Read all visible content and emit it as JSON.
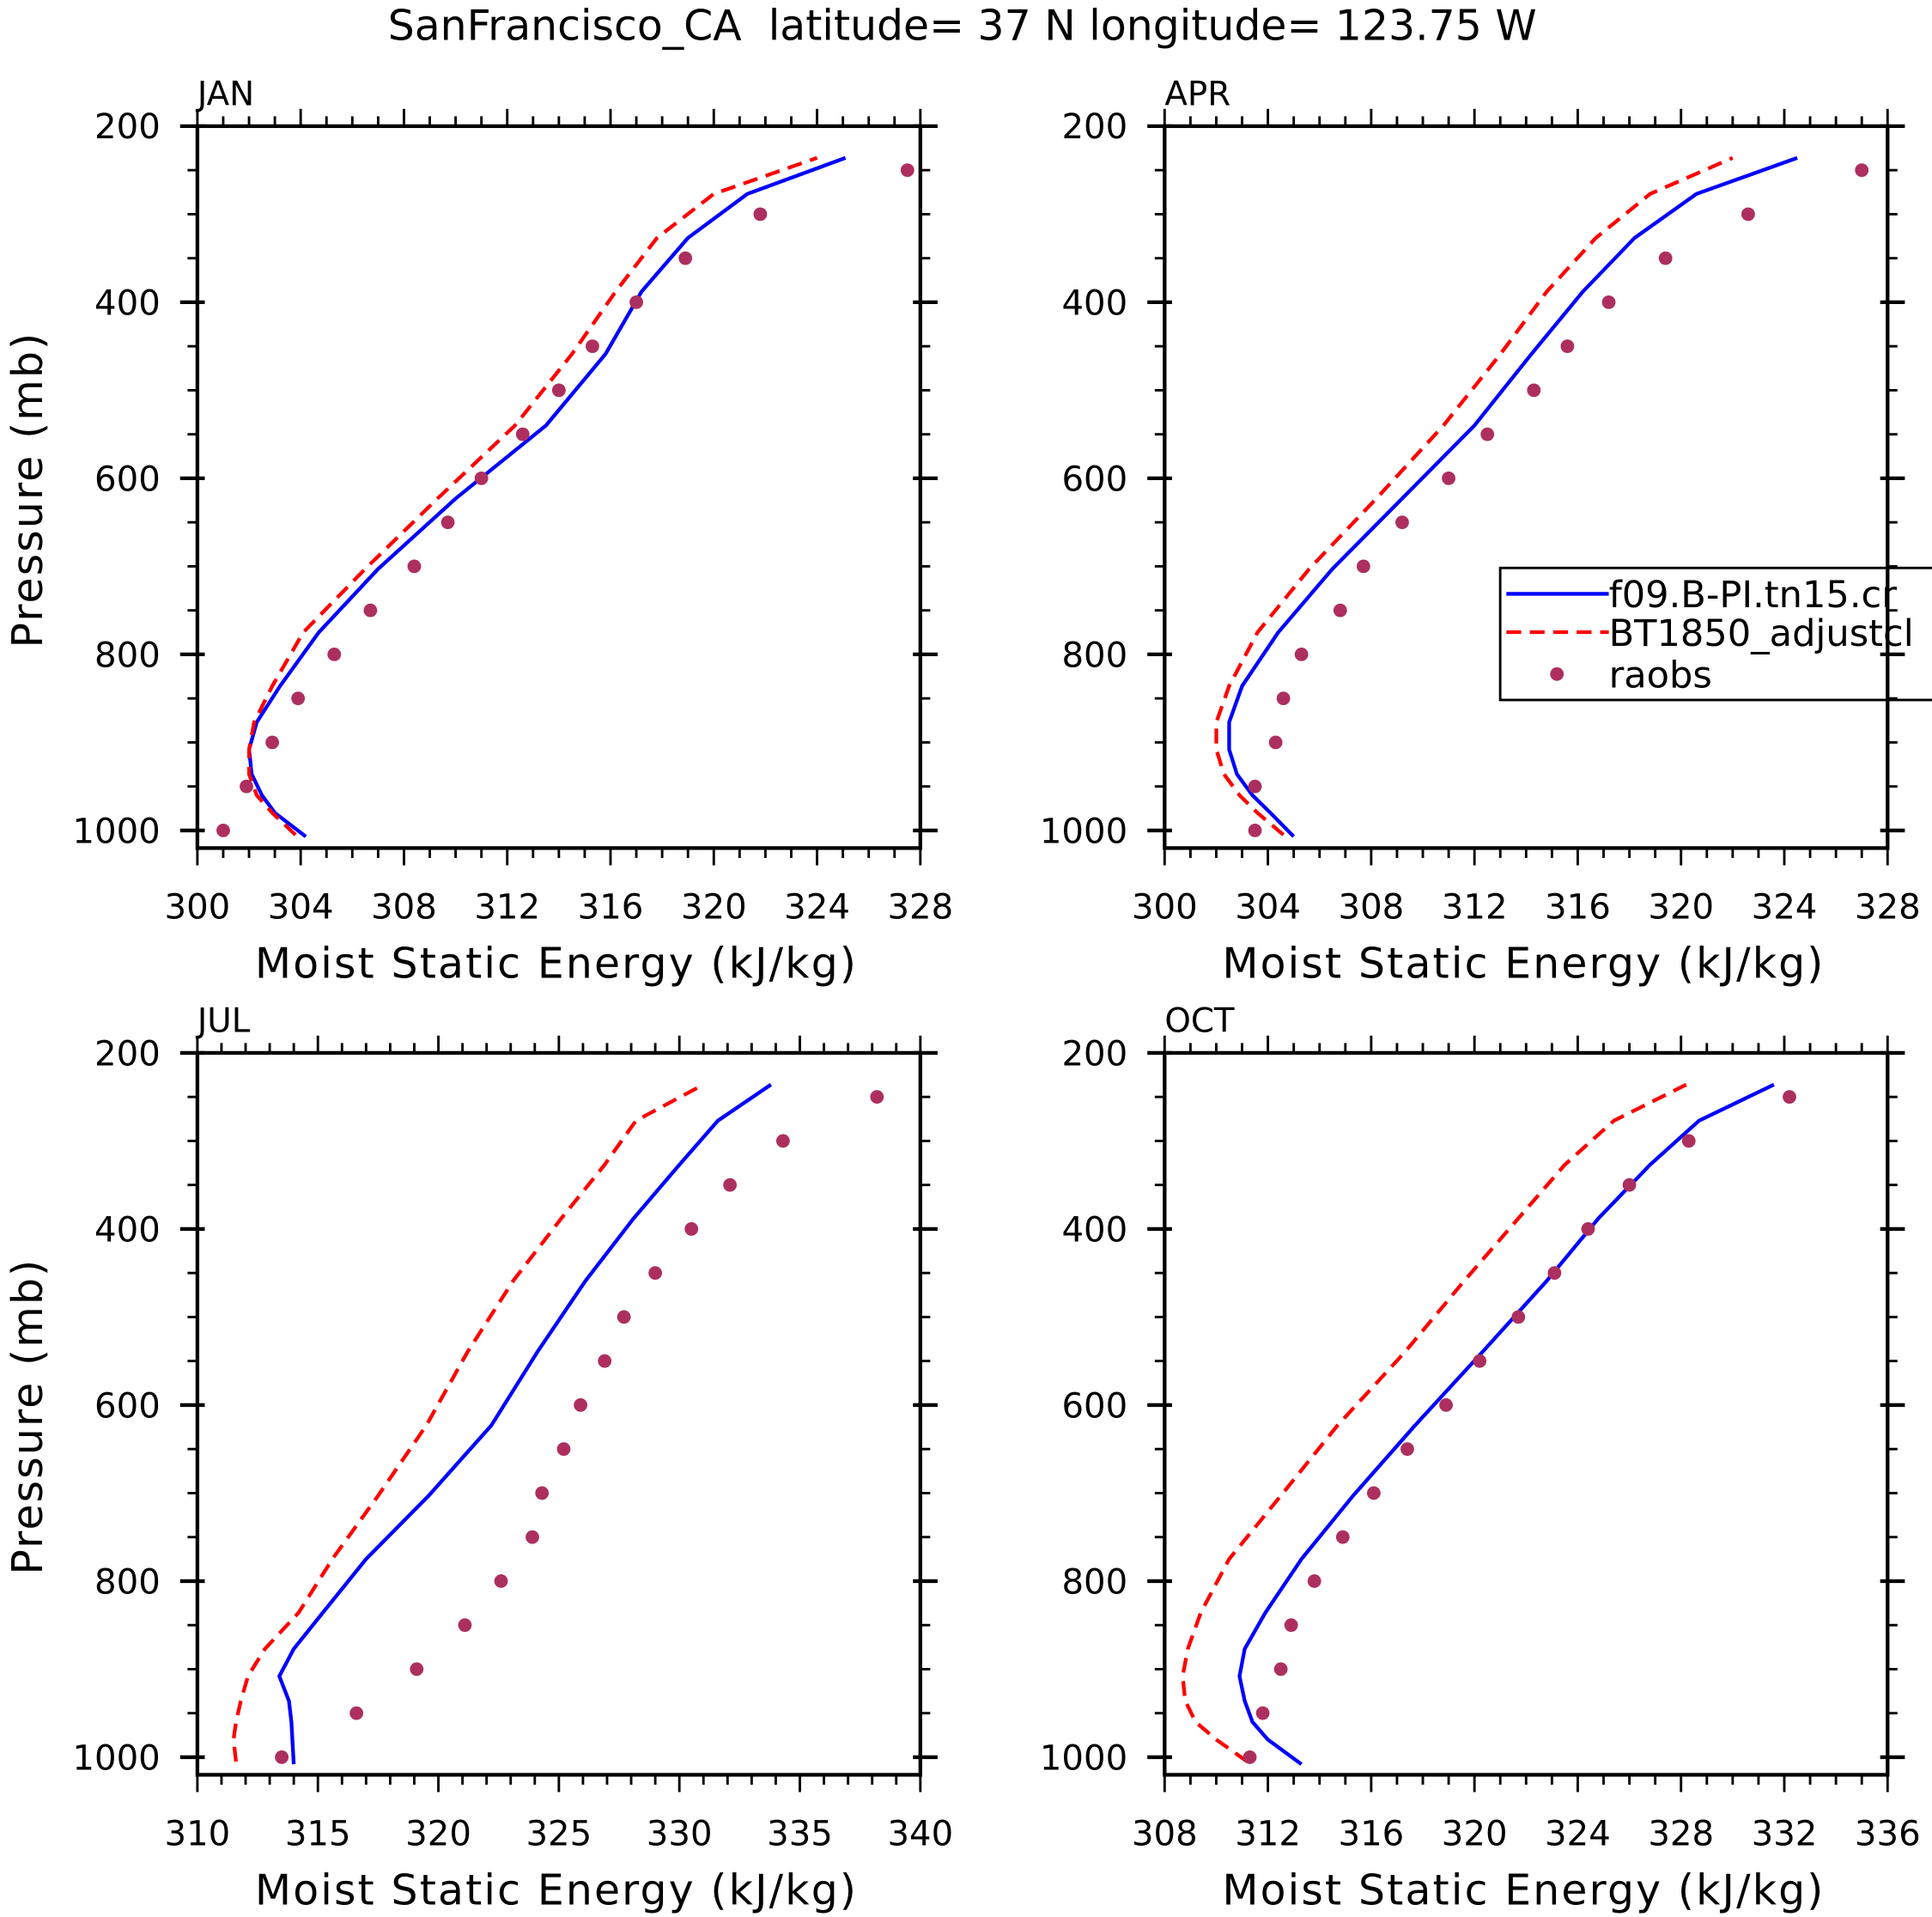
{
  "title": "SanFrancisco_CA  latitude= 37 N longitude= 123.75 W",
  "colors": {
    "model1": "#0000ff",
    "model2": "#ff0000",
    "raobs": "#ad2f5f",
    "axis": "#000000"
  },
  "legend": {
    "placement": "inside APR panel, right",
    "entries": [
      {
        "label": "f09.B-PI.tn15.cr",
        "style": "solid",
        "color": "#0000ff"
      },
      {
        "label": "BT1850_adjustcl",
        "style": "dashed",
        "color": "#ff0000"
      },
      {
        "label": "raobs",
        "style": "dot",
        "color": "#ad2f5f"
      }
    ]
  },
  "chart_data": [
    {
      "type": "line",
      "title": "JAN",
      "xlabel": "Moist Static Energy (kJ/kg)",
      "ylabel": "Pressure (mb)",
      "xlim": [
        300,
        328
      ],
      "xticks": [
        300,
        304,
        308,
        312,
        316,
        320,
        324,
        328
      ],
      "ylim": [
        200,
        1020
      ],
      "yticks": [
        200,
        400,
        600,
        800,
        1000
      ],
      "y_inverted": true,
      "series": [
        {
          "name": "f09.B-PI.tn15.cr",
          "style": "solid",
          "p": [
            1007,
            980,
            960,
            936,
            908,
            877,
            836,
            775,
            703,
            623,
            540,
            459,
            388,
            327,
            277,
            236
          ],
          "x": [
            304.2,
            303.0,
            302.5,
            302.1,
            302.0,
            302.3,
            303.2,
            304.7,
            307.0,
            310.0,
            313.5,
            315.8,
            317.2,
            319.0,
            321.3,
            325.1
          ]
        },
        {
          "name": "BT1850_adjustcl",
          "style": "dashed",
          "p": [
            1005,
            980,
            960,
            936,
            908,
            877,
            836,
            775,
            703,
            623,
            540,
            459,
            388,
            327,
            277,
            236
          ],
          "x": [
            303.8,
            302.9,
            302.3,
            302.0,
            302.0,
            302.2,
            302.9,
            304.1,
            306.5,
            309.3,
            312.3,
            314.5,
            316.2,
            317.8,
            320.0,
            324.0
          ]
        },
        {
          "name": "raobs",
          "style": "dot",
          "p": [
            1000,
            950,
            900,
            850,
            800,
            750,
            700,
            650,
            600,
            550,
            500,
            450,
            400,
            350,
            300,
            250
          ],
          "x": [
            301.0,
            301.9,
            302.9,
            303.9,
            305.3,
            306.7,
            308.4,
            309.7,
            311.0,
            312.6,
            314.0,
            315.3,
            317.0,
            318.9,
            321.8,
            327.5
          ]
        }
      ]
    },
    {
      "type": "line",
      "title": "APR",
      "xlabel": "Moist Static Energy (kJ/kg)",
      "ylabel": "",
      "xlim": [
        300,
        328
      ],
      "xticks": [
        300,
        304,
        308,
        312,
        316,
        320,
        324,
        328
      ],
      "ylim": [
        200,
        1020
      ],
      "yticks": [
        200,
        400,
        600,
        800,
        1000
      ],
      "y_inverted": true,
      "series": [
        {
          "name": "f09.B-PI.tn15.cr",
          "style": "solid",
          "p": [
            1007,
            980,
            960,
            936,
            908,
            877,
            836,
            775,
            703,
            623,
            540,
            459,
            388,
            327,
            277,
            236
          ],
          "x": [
            305.0,
            304.1,
            303.4,
            302.8,
            302.5,
            302.5,
            303.0,
            304.4,
            306.5,
            309.2,
            312.0,
            314.2,
            316.2,
            318.2,
            320.6,
            324.5
          ]
        },
        {
          "name": "BT1850_adjustcl",
          "style": "dashed",
          "p": [
            1005,
            980,
            960,
            936,
            908,
            877,
            836,
            775,
            703,
            623,
            540,
            459,
            388,
            327,
            277,
            236
          ],
          "x": [
            304.6,
            303.6,
            302.9,
            302.3,
            302.0,
            302.0,
            302.5,
            303.6,
            305.6,
            308.2,
            310.8,
            313.0,
            314.8,
            316.7,
            318.8,
            322.0
          ]
        },
        {
          "name": "raobs",
          "style": "dot",
          "p": [
            1000,
            950,
            900,
            850,
            800,
            750,
            700,
            650,
            600,
            550,
            500,
            450,
            400,
            350,
            300,
            250
          ],
          "x": [
            303.5,
            303.5,
            304.3,
            304.6,
            305.3,
            306.8,
            307.7,
            309.2,
            311.0,
            312.5,
            314.3,
            315.6,
            317.2,
            319.4,
            322.6,
            327.0
          ]
        }
      ]
    },
    {
      "type": "line",
      "title": "JUL",
      "xlabel": "Moist Static Energy (kJ/kg)",
      "ylabel": "Pressure (mb)",
      "xlim": [
        310,
        340
      ],
      "xticks": [
        310,
        315,
        320,
        325,
        330,
        335,
        340
      ],
      "ylim": [
        200,
        1020
      ],
      "yticks": [
        200,
        400,
        600,
        800,
        1000
      ],
      "y_inverted": true,
      "series": [
        {
          "name": "f09.B-PI.tn15.cr",
          "style": "solid",
          "p": [
            1008,
            960,
            936,
            908,
            877,
            836,
            775,
            703,
            623,
            540,
            459,
            388,
            327,
            277,
            236
          ],
          "x": [
            314.0,
            313.9,
            313.8,
            313.4,
            314.0,
            315.2,
            317.0,
            319.6,
            322.2,
            324.1,
            326.1,
            328.1,
            330.0,
            331.6,
            333.8
          ]
        },
        {
          "name": "BT1850_adjustcl",
          "style": "dashed",
          "p": [
            1005,
            980,
            960,
            936,
            908,
            877,
            836,
            775,
            703,
            623,
            540,
            459,
            388,
            327,
            277,
            236
          ],
          "x": [
            311.6,
            311.5,
            311.6,
            311.8,
            312.1,
            312.8,
            314.2,
            315.6,
            317.5,
            319.5,
            321.2,
            323.1,
            325.1,
            326.9,
            328.2,
            331.0
          ]
        },
        {
          "name": "raobs",
          "style": "dot",
          "p": [
            1000,
            950,
            900,
            850,
            800,
            750,
            700,
            650,
            600,
            550,
            500,
            450,
            400,
            350,
            300,
            250
          ],
          "x": [
            313.5,
            316.6,
            319.1,
            321.1,
            322.6,
            323.9,
            324.3,
            325.2,
            325.9,
            326.9,
            327.7,
            329.0,
            330.5,
            332.1,
            334.3,
            338.2
          ]
        }
      ]
    },
    {
      "type": "line",
      "title": "OCT",
      "xlabel": "Moist Static Energy (kJ/kg)",
      "ylabel": "",
      "xlim": [
        308,
        336
      ],
      "xticks": [
        308,
        312,
        316,
        320,
        324,
        328,
        332,
        336
      ],
      "ylim": [
        200,
        1020
      ],
      "yticks": [
        200,
        400,
        600,
        800,
        1000
      ],
      "y_inverted": true,
      "series": [
        {
          "name": "f09.B-PI.tn15.cr",
          "style": "solid",
          "p": [
            1008,
            980,
            960,
            936,
            908,
            877,
            836,
            775,
            703,
            623,
            540,
            459,
            388,
            327,
            277,
            236
          ],
          "x": [
            313.3,
            312.0,
            311.4,
            311.1,
            310.9,
            311.1,
            311.9,
            313.3,
            315.3,
            317.7,
            320.3,
            322.8,
            324.8,
            326.8,
            328.7,
            331.6
          ]
        },
        {
          "name": "BT1850_adjustcl",
          "style": "dashed",
          "p": [
            1005,
            980,
            960,
            936,
            908,
            877,
            836,
            775,
            703,
            623,
            540,
            459,
            388,
            327,
            277,
            236
          ],
          "x": [
            311.2,
            310.0,
            309.2,
            308.8,
            308.7,
            308.9,
            309.4,
            310.5,
            312.5,
            314.7,
            317.3,
            319.6,
            321.7,
            323.5,
            325.4,
            328.2
          ]
        },
        {
          "name": "raobs",
          "style": "dot",
          "p": [
            1000,
            950,
            900,
            850,
            800,
            750,
            700,
            650,
            600,
            550,
            500,
            450,
            400,
            350,
            300,
            250
          ],
          "x": [
            311.3,
            311.8,
            312.5,
            312.9,
            313.8,
            314.9,
            316.1,
            317.4,
            318.9,
            320.2,
            321.7,
            323.1,
            324.4,
            326.0,
            328.3,
            332.2
          ]
        }
      ]
    }
  ]
}
